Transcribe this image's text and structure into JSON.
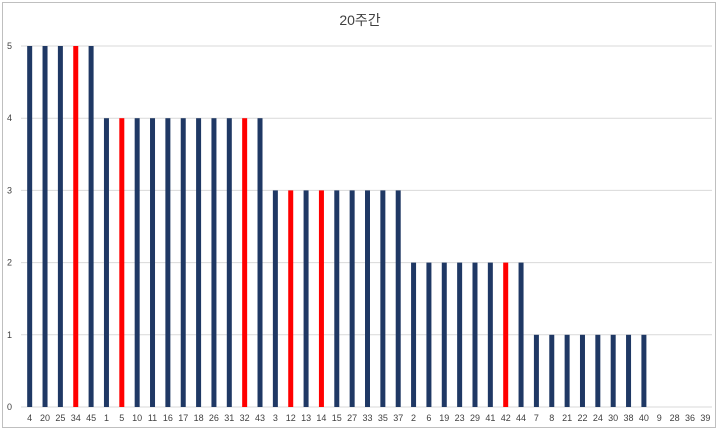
{
  "chart_data": {
    "type": "bar",
    "title": "20주간",
    "xlabel": "",
    "ylabel": "",
    "ylim": [
      0,
      5
    ],
    "yticks": [
      0,
      1,
      2,
      3,
      4,
      5
    ],
    "grid": true,
    "legend": "none",
    "categories": [
      "4",
      "20",
      "25",
      "34",
      "45",
      "1",
      "5",
      "10",
      "11",
      "16",
      "17",
      "18",
      "26",
      "31",
      "32",
      "43",
      "3",
      "12",
      "13",
      "14",
      "15",
      "27",
      "33",
      "35",
      "37",
      "2",
      "6",
      "19",
      "23",
      "29",
      "41",
      "42",
      "44",
      "7",
      "8",
      "21",
      "22",
      "24",
      "30",
      "38",
      "40",
      "9",
      "28",
      "36",
      "39"
    ],
    "values": [
      5,
      5,
      5,
      5,
      5,
      4,
      4,
      4,
      4,
      4,
      4,
      4,
      4,
      4,
      4,
      4,
      3,
      3,
      3,
      3,
      3,
      3,
      3,
      3,
      3,
      2,
      2,
      2,
      2,
      2,
      2,
      2,
      2,
      1,
      1,
      1,
      1,
      1,
      1,
      1,
      1,
      0,
      0,
      0,
      0
    ],
    "highlighted": [
      "34",
      "5",
      "32",
      "12",
      "14",
      "42"
    ],
    "colors": {
      "default": "#1f3864",
      "highlight": "#ff0000",
      "grid": "#d9d9d9"
    }
  }
}
